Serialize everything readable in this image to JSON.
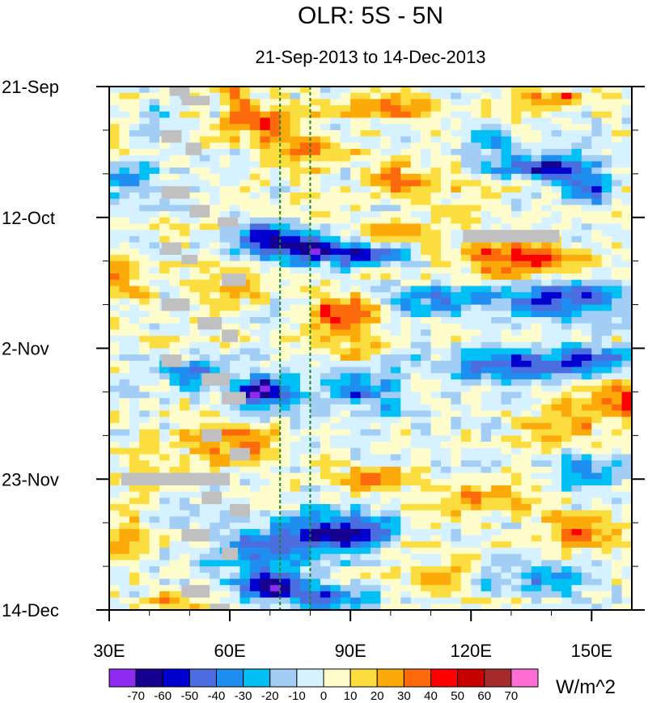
{
  "chart_data": {
    "type": "heatmap",
    "title": "OLR: 5S - 5N",
    "subtitle": "21-Sep-2013 to 14-Dec-2013",
    "xlabel": "",
    "ylabel": "",
    "x_range": [
      30,
      160
    ],
    "y_range_days": [
      0,
      84
    ],
    "x_ticks": [
      {
        "value": 30,
        "label": "30E"
      },
      {
        "value": 60,
        "label": "60E"
      },
      {
        "value": 90,
        "label": "90E"
      },
      {
        "value": 120,
        "label": "120E"
      },
      {
        "value": 150,
        "label": "150E"
      }
    ],
    "y_ticks": [
      {
        "day": 0,
        "label": "21-Sep"
      },
      {
        "day": 21,
        "label": "12-Oct"
      },
      {
        "day": 42,
        "label": "2-Nov"
      },
      {
        "day": 63,
        "label": "23-Nov"
      },
      {
        "day": 84,
        "label": "14-Dec"
      }
    ],
    "reference_lines_lon": [
      72.5,
      80
    ],
    "colorbar": {
      "units": "W/m^2",
      "levels": [
        -70,
        -60,
        -50,
        -40,
        -30,
        -20,
        -10,
        0,
        10,
        20,
        30,
        40,
        50,
        60,
        70
      ],
      "labels": [
        "-70",
        "-60",
        "-50",
        "-40",
        "-30",
        "-20",
        "-10",
        "0",
        "10",
        "20",
        "30",
        "40",
        "50",
        "60",
        "70"
      ],
      "colors": [
        "#8f2bf0",
        "#16008f",
        "#0000d0",
        "#4a6ee0",
        "#1e8ff0",
        "#00c0f5",
        "#a2cdf5",
        "#d6f1ff",
        "#fffccc",
        "#fcdd3f",
        "#fcaa0a",
        "#fc6a0c",
        "#fc0000",
        "#c80000",
        "#a52a2a",
        "#ff6dd5"
      ]
    },
    "missing_color": "#c0c0c0",
    "anomaly_features": [
      {
        "lon": 70,
        "day": 6,
        "value": 38,
        "rlon": 6,
        "rday": 3
      },
      {
        "lon": 62,
        "day": 3,
        "value": 28,
        "rlon": 5,
        "rday": 4
      },
      {
        "lon": 80,
        "day": 10,
        "value": 30,
        "rlon": 10,
        "rday": 3
      },
      {
        "lon": 100,
        "day": 3,
        "value": 35,
        "rlon": 12,
        "rday": 2
      },
      {
        "lon": 140,
        "day": 2,
        "value": 30,
        "rlon": 14,
        "rday": 2
      },
      {
        "lon": 103,
        "day": 15,
        "value": 32,
        "rlon": 10,
        "rday": 3
      },
      {
        "lon": 35,
        "day": 15,
        "value": -25,
        "rlon": 7,
        "rday": 3
      },
      {
        "lon": 43,
        "day": 5,
        "value": -18,
        "rlon": 6,
        "rday": 3
      },
      {
        "lon": 138,
        "day": 13,
        "value": -55,
        "rlon": 14,
        "rday": 2
      },
      {
        "lon": 148,
        "day": 17,
        "value": -50,
        "rlon": 6,
        "rday": 2
      },
      {
        "lon": 125,
        "day": 8,
        "value": -35,
        "rlon": 6,
        "rday": 2
      },
      {
        "lon": 80,
        "day": 26,
        "value": -65,
        "rlon": 12,
        "rday": 2.5
      },
      {
        "lon": 68,
        "day": 24,
        "value": -55,
        "rlon": 6,
        "rday": 2
      },
      {
        "lon": 95,
        "day": 27,
        "value": -40,
        "rlon": 10,
        "rday": 2
      },
      {
        "lon": 130,
        "day": 28,
        "value": 38,
        "rlon": 18,
        "rday": 3
      },
      {
        "lon": 97,
        "day": 24,
        "value": 25,
        "rlon": 12,
        "rday": 2
      },
      {
        "lon": 110,
        "day": 34,
        "value": -30,
        "rlon": 16,
        "rday": 3
      },
      {
        "lon": 143,
        "day": 34,
        "value": -50,
        "rlon": 15,
        "rday": 3
      },
      {
        "lon": 88,
        "day": 36,
        "value": 35,
        "rlon": 9,
        "rday": 3
      },
      {
        "lon": 60,
        "day": 33,
        "value": 18,
        "rlon": 10,
        "rday": 4
      },
      {
        "lon": 35,
        "day": 30,
        "value": 22,
        "rlon": 6,
        "rday": 3
      },
      {
        "lon": 68,
        "day": 49,
        "value": -72,
        "rlon": 8,
        "rday": 2.5
      },
      {
        "lon": 50,
        "day": 46,
        "value": -45,
        "rlon": 8,
        "rday": 2
      },
      {
        "lon": 95,
        "day": 49,
        "value": -40,
        "rlon": 10,
        "rday": 3
      },
      {
        "lon": 125,
        "day": 45,
        "value": -40,
        "rlon": 14,
        "rday": 3
      },
      {
        "lon": 148,
        "day": 44,
        "value": -50,
        "rlon": 12,
        "rday": 2
      },
      {
        "lon": 157,
        "day": 51,
        "value": 45,
        "rlon": 7,
        "rday": 3
      },
      {
        "lon": 140,
        "day": 55,
        "value": 30,
        "rlon": 10,
        "rday": 3
      },
      {
        "lon": 85,
        "day": 41,
        "value": 18,
        "rlon": 12,
        "rday": 3
      },
      {
        "lon": 60,
        "day": 57,
        "value": 25,
        "rlon": 12,
        "rday": 4
      },
      {
        "lon": 95,
        "day": 63,
        "value": 32,
        "rlon": 10,
        "rday": 2
      },
      {
        "lon": 120,
        "day": 66,
        "value": 22,
        "rlon": 15,
        "rday": 3
      },
      {
        "lon": 40,
        "day": 61,
        "value": 18,
        "rlon": 8,
        "rday": 3
      },
      {
        "lon": 88,
        "day": 71,
        "value": -55,
        "rlon": 14,
        "rday": 3
      },
      {
        "lon": 72,
        "day": 74,
        "value": -45,
        "rlon": 16,
        "rday": 3
      },
      {
        "lon": 70,
        "day": 80,
        "value": -70,
        "rlon": 8,
        "rday": 2.5
      },
      {
        "lon": 85,
        "day": 82,
        "value": -45,
        "rlon": 10,
        "rday": 2
      },
      {
        "lon": 140,
        "day": 79,
        "value": -30,
        "rlon": 12,
        "rday": 3
      },
      {
        "lon": 145,
        "day": 71,
        "value": 28,
        "rlon": 12,
        "rday": 3
      },
      {
        "lon": 35,
        "day": 73,
        "value": 28,
        "rlon": 6,
        "rday": 4
      },
      {
        "lon": 48,
        "day": 83,
        "value": 25,
        "rlon": 8,
        "rday": 2
      },
      {
        "lon": 110,
        "day": 78,
        "value": 18,
        "rlon": 10,
        "rday": 3
      },
      {
        "lon": 150,
        "day": 62,
        "value": -30,
        "rlon": 10,
        "rday": 3
      }
    ],
    "missing_blocks": [
      {
        "lon0": 45,
        "lon1": 50,
        "day0": 0,
        "day1": 1.5
      },
      {
        "lon0": 48,
        "lon1": 55,
        "day0": 1.5,
        "day1": 3
      },
      {
        "lon0": 43,
        "lon1": 48,
        "day0": 7,
        "day1": 9
      },
      {
        "lon0": 49,
        "lon1": 53,
        "day0": 9,
        "day1": 11
      },
      {
        "lon0": 43,
        "lon1": 50,
        "day0": 16,
        "day1": 18
      },
      {
        "lon0": 50,
        "lon1": 55,
        "day0": 19,
        "day1": 21
      },
      {
        "lon0": 57,
        "lon1": 62,
        "day0": 21,
        "day1": 22.5
      },
      {
        "lon0": 118,
        "lon1": 142,
        "day0": 23,
        "day1": 25
      },
      {
        "lon0": 43,
        "lon1": 48,
        "day0": 25,
        "day1": 27
      },
      {
        "lon0": 48,
        "lon1": 52,
        "day0": 27,
        "day1": 28.5
      },
      {
        "lon0": 58,
        "lon1": 64,
        "day0": 30,
        "day1": 32
      },
      {
        "lon0": 43,
        "lon1": 50,
        "day0": 34,
        "day1": 36
      },
      {
        "lon0": 52,
        "lon1": 58,
        "day0": 37,
        "day1": 39
      },
      {
        "lon0": 58,
        "lon1": 62,
        "day0": 39,
        "day1": 41
      },
      {
        "lon0": 43,
        "lon1": 48,
        "day0": 43,
        "day1": 45
      },
      {
        "lon0": 53,
        "lon1": 60,
        "day0": 46,
        "day1": 48
      },
      {
        "lon0": 58,
        "lon1": 64,
        "day0": 49,
        "day1": 51
      },
      {
        "lon0": 53,
        "lon1": 58,
        "day0": 55,
        "day1": 57
      },
      {
        "lon0": 60,
        "lon1": 65,
        "day0": 58,
        "day1": 60
      },
      {
        "lon0": 33,
        "lon1": 60,
        "day0": 62,
        "day1": 64
      },
      {
        "lon0": 53,
        "lon1": 58,
        "day0": 65,
        "day1": 67
      },
      {
        "lon0": 60,
        "lon1": 65,
        "day0": 67,
        "day1": 69
      },
      {
        "lon0": 48,
        "lon1": 55,
        "day0": 71,
        "day1": 73
      },
      {
        "lon0": 58,
        "lon1": 62,
        "day0": 74,
        "day1": 76
      },
      {
        "lon0": 48,
        "lon1": 55,
        "day0": 80,
        "day1": 82
      },
      {
        "lon0": 55,
        "lon1": 60,
        "day0": 83,
        "day1": 84
      }
    ]
  }
}
